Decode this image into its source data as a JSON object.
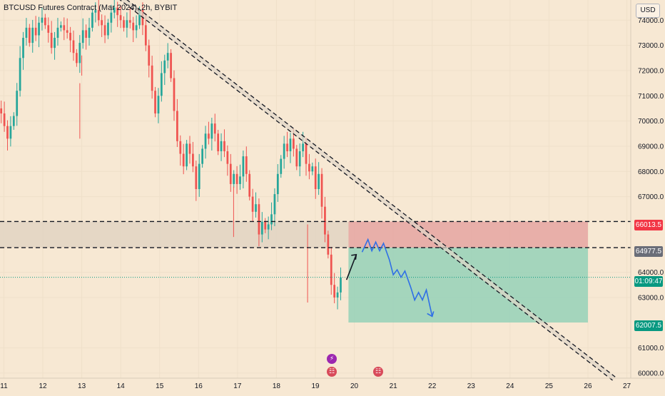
{
  "header": {
    "title": "BTCUSD Futures Contract (Mar 2024), 2h, BYBIT",
    "currency_button": "USD"
  },
  "price_axis": {
    "ticks": [
      "74000.0",
      "73000.0",
      "72000.0",
      "71000.0",
      "70000.0",
      "69000.0",
      "68000.0",
      "67000.0",
      "64000.0",
      "63000.0",
      "61000.0",
      "60000.0"
    ],
    "labels": {
      "top_zone": "66013.5",
      "entry": "64977.5",
      "current": "63800",
      "countdown": "01:09:47",
      "target": "62007.5"
    }
  },
  "time_axis": {
    "ticks": [
      "11",
      "12",
      "13",
      "14",
      "15",
      "16",
      "17",
      "18",
      "19",
      "20",
      "21",
      "22",
      "23",
      "24",
      "25",
      "26",
      "27"
    ]
  },
  "colors": {
    "background": "#f7e8d3",
    "up_candle": "#26a69a",
    "down_candle": "#ef5350",
    "stop_zone": "#e6a9a4",
    "profit_zone": "#9ad3b9",
    "supply_zone": "#e2d5c3",
    "projection": "#2f6fe6",
    "target_label": "#089981",
    "stop_label": "#f23645",
    "entry_label": "#6a6d78"
  },
  "events": [
    {
      "icon": "lightning-icon",
      "day": "19.6"
    },
    {
      "icon": "us-flag-icon",
      "day": "19.6"
    },
    {
      "icon": "us-flag-icon",
      "day": "20.85"
    }
  ],
  "chart_data": {
    "type": "candlestick",
    "symbol": "BTCUSD",
    "interval": "2h",
    "ylim": [
      59800,
      74800
    ],
    "xlim": [
      10.9,
      27.1
    ],
    "support_zone": {
      "top": 66013.5,
      "bottom": 64977.5
    },
    "position": {
      "entry": 64977.5,
      "stop": 66013.5,
      "target": 62007.5,
      "start_day": 19.85,
      "end_day": 26.0
    },
    "trendline": {
      "from": [
        14.0,
        75000
      ],
      "to": [
        26.7,
        59850
      ],
      "offset": 160
    },
    "arrow": [
      [
        19.8,
        63700
      ],
      [
        20.05,
        64700
      ]
    ],
    "projection": [
      [
        20.2,
        64800
      ],
      [
        20.35,
        65300
      ],
      [
        20.45,
        64850
      ],
      [
        20.55,
        65200
      ],
      [
        20.65,
        64850
      ],
      [
        20.75,
        65150
      ],
      [
        20.9,
        64500
      ],
      [
        21.0,
        63900
      ],
      [
        21.1,
        64100
      ],
      [
        21.2,
        63800
      ],
      [
        21.3,
        64050
      ],
      [
        21.45,
        63400
      ],
      [
        21.55,
        62900
      ],
      [
        21.65,
        63200
      ],
      [
        21.75,
        62900
      ],
      [
        21.85,
        63300
      ],
      [
        22.0,
        62250
      ]
    ],
    "path": [
      70500,
      70300,
      69800,
      69300,
      69800,
      70200,
      71200,
      72500,
      73300,
      73700,
      73100,
      73700,
      73400,
      73900,
      74100,
      73800,
      73500,
      72900,
      73300,
      73700,
      73800,
      73600,
      73500,
      73200,
      72700,
      72300,
      73100,
      73600,
      73300,
      73700,
      74300,
      74400,
      74000,
      73800,
      73400,
      73900,
      74300,
      74500,
      74200,
      74000,
      73700,
      74000,
      73900,
      73600,
      73800,
      74400,
      73800,
      73000,
      72200,
      71200,
      70300,
      71000,
      71900,
      72400,
      72700,
      71700,
      70400,
      69200,
      68700,
      68200,
      69100,
      68700,
      68200,
      67300,
      68300,
      68900,
      69500,
      69300,
      69900,
      69500,
      68800,
      69200,
      68800,
      68300,
      67500,
      67900,
      67500,
      67800,
      68600,
      67900,
      67000,
      66400,
      66700,
      65500,
      66000,
      65700,
      65900,
      66300,
      67100,
      67900,
      68500,
      69100,
      68800,
      69300,
      68900,
      68200,
      68800,
      69100,
      68300,
      68000,
      68200,
      67300,
      67900,
      66600,
      65500,
      64700,
      63500,
      63000,
      63200,
      63800
    ]
  }
}
